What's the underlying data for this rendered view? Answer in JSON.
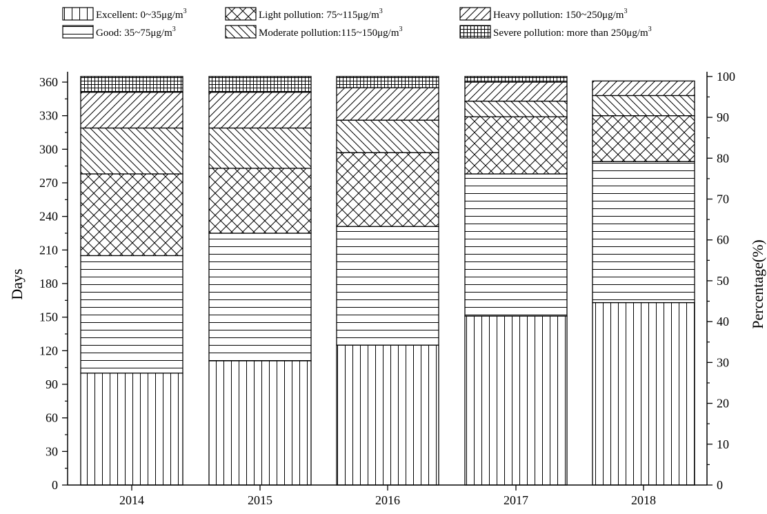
{
  "chart_data": {
    "type": "bar",
    "stacked": true,
    "categories": [
      "2014",
      "2015",
      "2016",
      "2017",
      "2018"
    ],
    "series": [
      {
        "key": "excellent",
        "name": "Excellent: 0~35μg/m",
        "sup": "3",
        "pattern": "vertical",
        "values": [
          100,
          111,
          125,
          151,
          163
        ]
      },
      {
        "key": "good",
        "name": "Good: 35~75μg/m",
        "sup": "3",
        "pattern": "horizontal",
        "values": [
          105,
          114,
          106,
          127,
          126
        ]
      },
      {
        "key": "light",
        "name": "Light pollution: 75~115μg/m",
        "sup": "3",
        "pattern": "crosshatch",
        "values": [
          73,
          58,
          66,
          51,
          41
        ]
      },
      {
        "key": "moderate",
        "name": "Moderate pollution:115~150μg/m",
        "sup": "3",
        "pattern": "backdiag",
        "values": [
          41,
          36,
          29,
          14,
          18
        ]
      },
      {
        "key": "heavy",
        "name": "Heavy pollution: 150~250μg/m",
        "sup": "3",
        "pattern": "diag",
        "values": [
          32,
          32,
          29,
          17,
          13
        ]
      },
      {
        "key": "severe",
        "name": "Severe pollution: more than 250μg/m",
        "sup": "3",
        "pattern": "grid",
        "values": [
          14,
          14,
          10,
          5,
          0
        ]
      }
    ],
    "ylabel": "Days",
    "y2label": "Percentage(%)",
    "ylim": [
      0,
      365
    ],
    "yticks": [
      0,
      30,
      60,
      90,
      120,
      150,
      180,
      210,
      240,
      270,
      300,
      330,
      360
    ],
    "y2lim": [
      0,
      100
    ],
    "y2ticks": [
      0,
      10,
      20,
      30,
      40,
      50,
      60,
      70,
      80,
      90,
      100
    ],
    "legend_position": "top",
    "grid": false
  }
}
